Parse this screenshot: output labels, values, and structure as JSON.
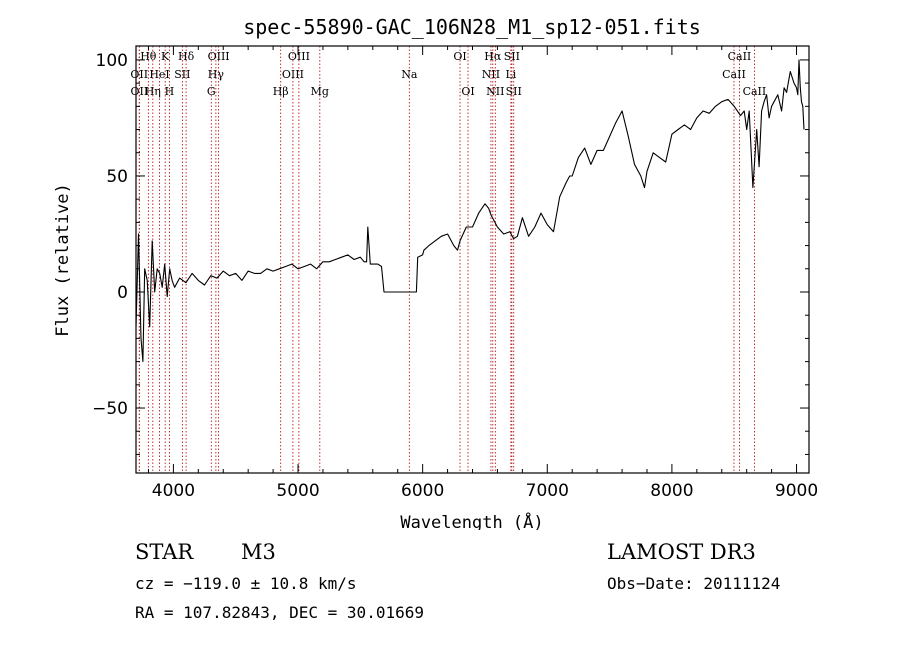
{
  "chart_data": {
    "type": "line",
    "title": "spec-55890-GAC_106N28_M1_sp12-051.fits",
    "xlabel": "Wavelength (Å)",
    "ylabel": "Flux (relative)",
    "xlim": [
      3700,
      9100
    ],
    "ylim": [
      -78,
      106
    ],
    "xticks": [
      4000,
      5000,
      6000,
      7000,
      8000,
      9000
    ],
    "yticks": [
      -50,
      0,
      50,
      100
    ],
    "xtick_labels": [
      "4000",
      "5000",
      "6000",
      "7000",
      "8000",
      "9000"
    ],
    "ytick_labels": [
      "−50",
      "0",
      "50",
      "100"
    ],
    "series": [
      {
        "name": "flux",
        "x": [
          3700,
          3720,
          3740,
          3755,
          3770,
          3790,
          3810,
          3830,
          3850,
          3870,
          3890,
          3910,
          3930,
          3950,
          3970,
          3990,
          4010,
          4050,
          4100,
          4150,
          4200,
          4250,
          4300,
          4350,
          4400,
          4450,
          4500,
          4550,
          4600,
          4650,
          4700,
          4750,
          4800,
          4850,
          4900,
          4950,
          5000,
          5050,
          5100,
          5150,
          5200,
          5250,
          5300,
          5350,
          5400,
          5450,
          5500,
          5530,
          5550,
          5560,
          5580,
          5600,
          5640,
          5670,
          5690,
          5700,
          5850,
          5950,
          5960,
          6000,
          6010,
          6050,
          6100,
          6150,
          6200,
          6250,
          6280,
          6300,
          6350,
          6400,
          6450,
          6500,
          6530,
          6550,
          6600,
          6650,
          6700,
          6730,
          6760,
          6800,
          6850,
          6900,
          6950,
          7000,
          7050,
          7100,
          7150,
          7180,
          7200,
          7250,
          7300,
          7350,
          7400,
          7450,
          7500,
          7550,
          7600,
          7650,
          7700,
          7750,
          7780,
          7800,
          7850,
          7900,
          7950,
          8000,
          8050,
          8100,
          8150,
          8200,
          8250,
          8300,
          8350,
          8400,
          8450,
          8500,
          8550,
          8580,
          8600,
          8620,
          8650,
          8680,
          8700,
          8720,
          8740,
          8760,
          8780,
          8800,
          8820,
          8850,
          8880,
          8900,
          8920,
          8950,
          8980,
          9000,
          9010,
          9020,
          9030,
          9040,
          9050,
          9060
        ],
        "y": [
          -15,
          25,
          -20,
          -30,
          10,
          5,
          -15,
          22,
          0,
          10,
          8,
          2,
          12,
          -2,
          10,
          5,
          2,
          6,
          4,
          8,
          5,
          3,
          7,
          6,
          9,
          7,
          8,
          5,
          9,
          8,
          8,
          10,
          9,
          10,
          11,
          12,
          10,
          11,
          12,
          10,
          13,
          13,
          14,
          15,
          16,
          14,
          15,
          13,
          13,
          28,
          12,
          12,
          12,
          11,
          0,
          0,
          0,
          0,
          15,
          16,
          18,
          20,
          22,
          24,
          25,
          20,
          18,
          22,
          28,
          28,
          34,
          38,
          36,
          33,
          28,
          25,
          26,
          23,
          24,
          32,
          24,
          28,
          34,
          29,
          26,
          41,
          47,
          50,
          50,
          58,
          62,
          55,
          61,
          61,
          67,
          73,
          78,
          67,
          55,
          50,
          45,
          52,
          60,
          58,
          56,
          68,
          70,
          72,
          70,
          75,
          78,
          77,
          80,
          82,
          83,
          80,
          76,
          78,
          70,
          78,
          45,
          70,
          54,
          78,
          82,
          85,
          75,
          80,
          82,
          85,
          78,
          88,
          86,
          95,
          90,
          88,
          85,
          100,
          88,
          82,
          80,
          70
        ]
      }
    ],
    "line_markers": [
      {
        "wl": 3799,
        "label": "Hθ",
        "row": 0
      },
      {
        "wl": 3835,
        "label": "Hη",
        "row": 2
      },
      {
        "wl": 3726,
        "label": "OII",
        "row": 1
      },
      {
        "wl": 3727,
        "label": "OII",
        "row": 2
      },
      {
        "wl": 3889,
        "label": "HeI",
        "row": 1
      },
      {
        "wl": 3934,
        "label": "K",
        "row": 0
      },
      {
        "wl": 3968,
        "label": "H",
        "row": 2
      },
      {
        "wl": 4072,
        "label": "SII",
        "row": 1
      },
      {
        "wl": 4102,
        "label": "Hδ",
        "row": 0
      },
      {
        "wl": 4304,
        "label": "G",
        "row": 2
      },
      {
        "wl": 4341,
        "label": "Hγ",
        "row": 1
      },
      {
        "wl": 4363,
        "label": "OIII",
        "row": 0
      },
      {
        "wl": 4861,
        "label": "Hβ",
        "row": 2
      },
      {
        "wl": 4959,
        "label": "OIII",
        "row": 1
      },
      {
        "wl": 5007,
        "label": "OIII",
        "row": 0
      },
      {
        "wl": 5175,
        "label": "Mg",
        "row": 2
      },
      {
        "wl": 5893,
        "label": "Na",
        "row": 1
      },
      {
        "wl": 6300,
        "label": "OI",
        "row": 0
      },
      {
        "wl": 6364,
        "label": "OI",
        "row": 2
      },
      {
        "wl": 6548,
        "label": "NII",
        "row": 1
      },
      {
        "wl": 6563,
        "label": "Hα",
        "row": 0
      },
      {
        "wl": 6583,
        "label": "NII",
        "row": 2
      },
      {
        "wl": 6708,
        "label": "Li",
        "row": 1
      },
      {
        "wl": 6716,
        "label": "SII",
        "row": 0
      },
      {
        "wl": 6731,
        "label": "SII",
        "row": 2
      },
      {
        "wl": 8498,
        "label": "CaII",
        "row": 1
      },
      {
        "wl": 8542,
        "label": "CaII",
        "row": 0
      },
      {
        "wl": 8662,
        "label": "CaII",
        "row": 2
      }
    ]
  },
  "info": {
    "class_label": "STAR",
    "subclass": "M3",
    "survey": "LAMOST DR3",
    "cz": "cz = −119.0 ± 10.8 km/s",
    "obs_date": "Obs−Date: 20111124",
    "coords": "RA = 107.82843, DEC =  30.01669"
  }
}
